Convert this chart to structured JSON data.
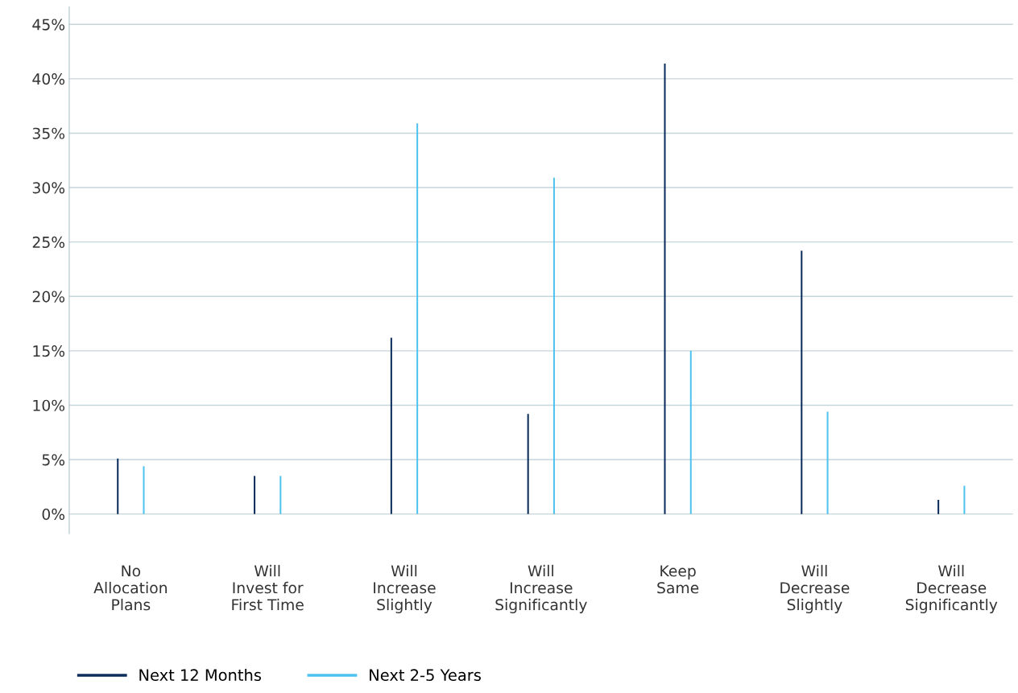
{
  "chart_data": {
    "type": "bar",
    "categories": [
      "No\nAllocation\nPlans",
      "Will\nInvest for\nFirst Time",
      "Will\nIncrease\nSlightly",
      "Will\nIncrease\nSignificantly",
      "Keep\nSame",
      "Will\nDecrease\nSlightly",
      "Will\nDecrease\nSignificantly"
    ],
    "series": [
      {
        "name": "Next 12 Months",
        "color": "#0b2d5b",
        "values": [
          5.1,
          3.5,
          16.2,
          9.2,
          41.4,
          24.2,
          1.3
        ]
      },
      {
        "name": "Next 2-5 Years",
        "color": "#4fc3f0",
        "values": [
          4.4,
          3.5,
          35.9,
          30.9,
          15.0,
          9.4,
          2.6
        ]
      }
    ],
    "ylim": [
      -1.8,
      46.6
    ],
    "yticks": [
      {
        "value": 0,
        "label": "0%"
      },
      {
        "value": 5,
        "label": "5%"
      },
      {
        "value": 10,
        "label": "10%"
      },
      {
        "value": 15,
        "label": "15%"
      },
      {
        "value": 20,
        "label": "20%"
      },
      {
        "value": 25,
        "label": "25%"
      },
      {
        "value": 30,
        "label": "30%"
      },
      {
        "value": 35,
        "label": "35%"
      },
      {
        "value": 40,
        "label": "40%"
      },
      {
        "value": 45,
        "label": "45%"
      }
    ],
    "grid": "y",
    "legend": "bottom left"
  }
}
